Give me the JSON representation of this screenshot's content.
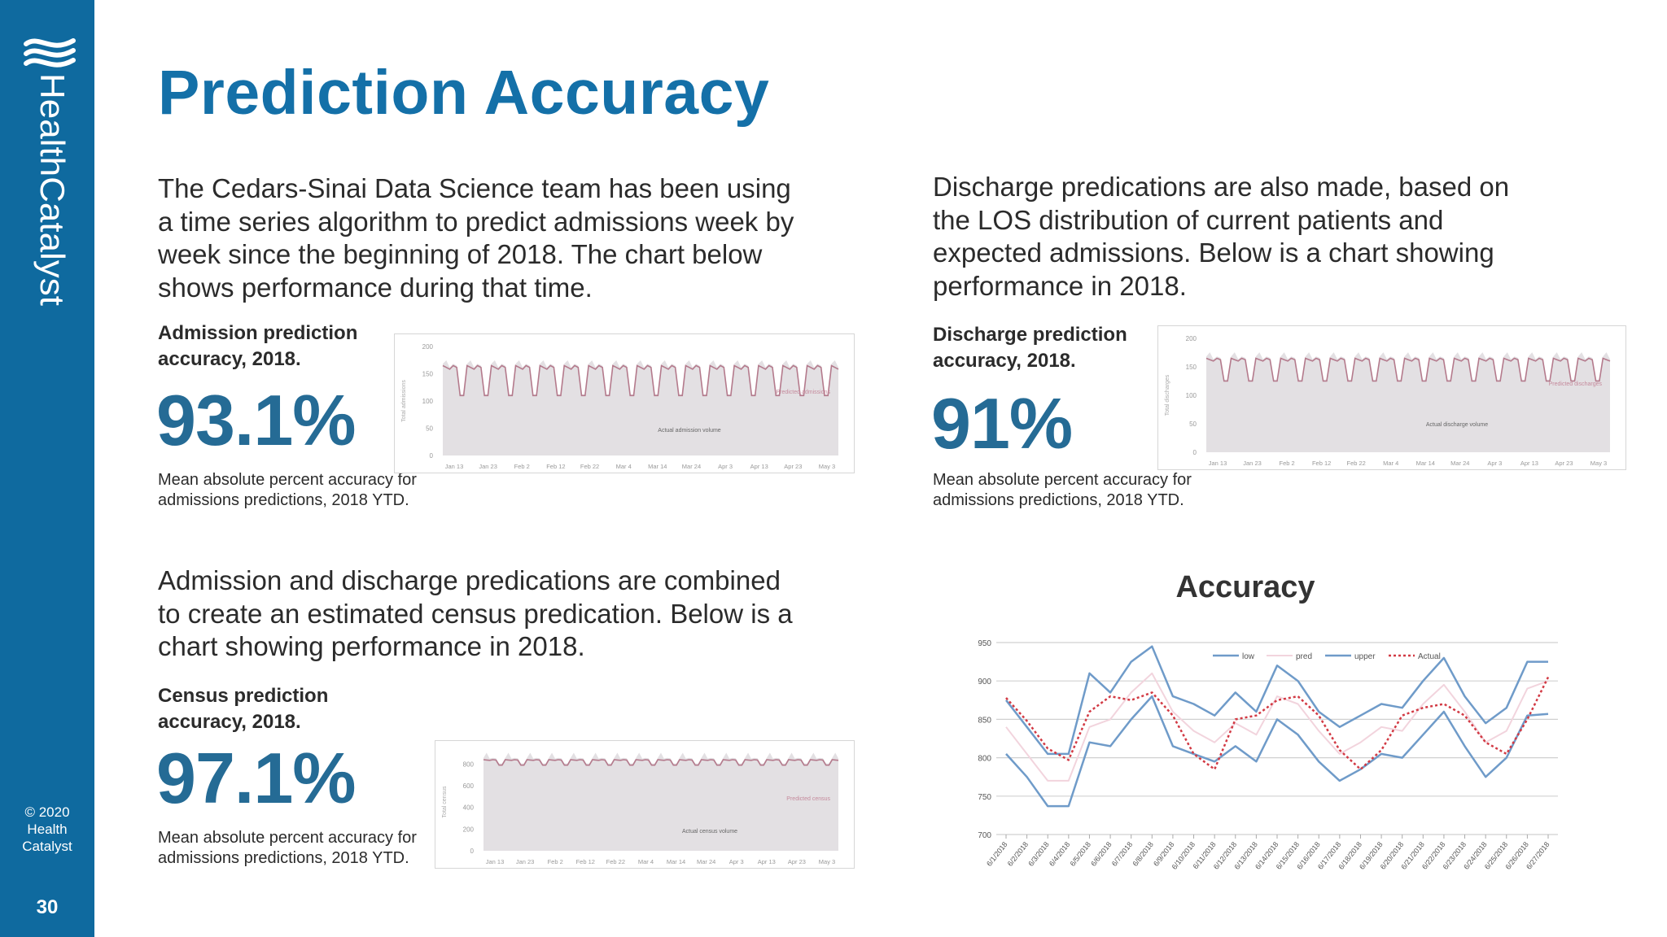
{
  "brand": {
    "logo_text": "HealthCatalyst"
  },
  "footer": {
    "copyright_lines": [
      "© 2020",
      "Health",
      "Catalyst"
    ],
    "page_number": "30"
  },
  "title": "Prediction Accuracy",
  "admissions": {
    "paragraph": [
      "The Cedars-Sinai Data Science team has been using",
      "a time series algorithm to predict admissions week by",
      "week since the beginning of 2018. The chart below",
      "shows performance during that time."
    ],
    "label": [
      "Admission prediction",
      "accuracy, 2018."
    ],
    "value": "93.1%",
    "note": [
      "Mean absolute percent accuracy for",
      "admissions predictions, 2018 YTD."
    ]
  },
  "discharges": {
    "paragraph": [
      "Discharge predications are also made, based on",
      "the LOS distribution of current patients and",
      "expected admissions. Below is a chart showing",
      "performance in 2018."
    ],
    "label": [
      "Discharge  prediction",
      "accuracy, 2018."
    ],
    "value": "91%",
    "note": [
      "Mean absolute percent accuracy for",
      "admissions predictions, 2018 YTD."
    ]
  },
  "census": {
    "paragraph": [
      "Admission and discharge predications are combined",
      "to create an estimated census predication. Below is a",
      "chart showing performance in 2018."
    ],
    "label": [
      "Census prediction",
      "accuracy, 2018."
    ],
    "value": "97.1%",
    "note": [
      "Mean absolute percent accuracy for",
      "admissions predictions, 2018 YTD."
    ]
  },
  "chart_data": [
    {
      "type": "area",
      "ylabel": "Total admissions",
      "yticks": [
        0,
        50,
        100,
        150,
        200
      ],
      "ylim": [
        0,
        200
      ],
      "xticks": [
        "Jan 13",
        "Jan 23",
        "Feb 2",
        "Feb 12",
        "Feb 22",
        "Mar 4",
        "Mar 14",
        "Mar 24",
        "Apr 3",
        "Apr 13",
        "Apr 23",
        "May 3"
      ],
      "series": [
        {
          "name": "Actual admission volume",
          "kind": "area",
          "color": "#e3e0e3"
        },
        {
          "name": "Predicted admissions",
          "kind": "line",
          "color": "#b47a8c"
        }
      ],
      "pattern": {
        "weekday_high": 165,
        "weekend_low": 110,
        "period_days": 7,
        "days": 115
      }
    },
    {
      "type": "area",
      "ylabel": "Total discharges",
      "yticks": [
        0,
        50,
        100,
        150,
        200
      ],
      "ylim": [
        0,
        200
      ],
      "xticks": [
        "Jan 13",
        "Jan 23",
        "Feb 2",
        "Feb 12",
        "Feb 22",
        "Mar 4",
        "Mar 14",
        "Mar 24",
        "Apr 3",
        "Apr 13",
        "Apr 23",
        "May 3"
      ],
      "series": [
        {
          "name": "Actual discharge volume",
          "kind": "area",
          "color": "#e3e0e3"
        },
        {
          "name": "Predicted discharges",
          "kind": "line",
          "color": "#b47a8c"
        }
      ],
      "pattern": {
        "weekday_high": 165,
        "weekend_low": 125,
        "period_days": 7,
        "days": 115
      }
    },
    {
      "type": "area",
      "ylabel": "Total census",
      "yticks": [
        0,
        200,
        400,
        600,
        800
      ],
      "ylim": [
        0,
        900
      ],
      "xticks": [
        "Jan 13",
        "Jan 23",
        "Feb 2",
        "Feb 12",
        "Feb 22",
        "Mar 4",
        "Mar 14",
        "Mar 24",
        "Apr 3",
        "Apr 13",
        "Apr 23",
        "May 3"
      ],
      "series": [
        {
          "name": "Actual census volume",
          "kind": "area",
          "color": "#e3e0e3"
        },
        {
          "name": "Predicted census",
          "kind": "line",
          "color": "#b47a8c"
        }
      ],
      "pattern": {
        "weekday_high": 840,
        "weekend_low": 790,
        "period_days": 7,
        "days": 115
      }
    },
    {
      "type": "line",
      "title": "Accuracy",
      "ylim": [
        700,
        950
      ],
      "yticks": [
        700,
        750,
        800,
        850,
        900,
        950
      ],
      "grid": true,
      "legend_position": "top",
      "categories": [
        "6/1/2018",
        "6/2/2018",
        "6/3/2018",
        "6/4/2018",
        "6/5/2018",
        "6/6/2018",
        "6/7/2018",
        "6/8/2018",
        "6/9/2018",
        "6/10/2018",
        "6/11/2018",
        "6/12/2018",
        "6/13/2018",
        "6/14/2018",
        "6/15/2018",
        "6/16/2018",
        "6/17/2018",
        "6/18/2018",
        "6/19/2018",
        "6/20/2018",
        "6/21/2018",
        "6/22/2018",
        "6/23/2018",
        "6/24/2018",
        "6/25/2018",
        "6/26/2018",
        "6/27/2018"
      ],
      "series": [
        {
          "name": "low",
          "color": "#6f9bc9",
          "width": 2.5,
          "dash": "",
          "values": [
            805,
            775,
            737,
            737,
            820,
            815,
            850,
            880,
            815,
            805,
            795,
            815,
            795,
            850,
            830,
            795,
            770,
            785,
            805,
            800,
            830,
            860,
            815,
            775,
            800,
            855,
            857
          ]
        },
        {
          "name": "pred",
          "color": "#f2d4dd",
          "width": 2,
          "dash": "",
          "values": [
            840,
            805,
            770,
            770,
            840,
            850,
            885,
            910,
            860,
            835,
            820,
            845,
            830,
            880,
            870,
            835,
            805,
            820,
            840,
            835,
            870,
            895,
            860,
            820,
            835,
            890,
            900
          ]
        },
        {
          "name": "upper",
          "color": "#6f9bc9",
          "width": 2.5,
          "dash": "",
          "values": [
            875,
            840,
            805,
            805,
            910,
            885,
            925,
            945,
            880,
            870,
            855,
            885,
            860,
            920,
            900,
            860,
            840,
            855,
            870,
            865,
            900,
            930,
            880,
            845,
            865,
            925,
            925
          ]
        },
        {
          "name": "Actual",
          "color": "#d23a44",
          "width": 2.5,
          "dash": "3,3",
          "values": [
            878,
            848,
            812,
            797,
            860,
            880,
            875,
            885,
            855,
            805,
            785,
            850,
            855,
            875,
            880,
            855,
            810,
            785,
            810,
            855,
            865,
            870,
            855,
            820,
            805,
            850,
            905
          ]
        }
      ]
    }
  ]
}
